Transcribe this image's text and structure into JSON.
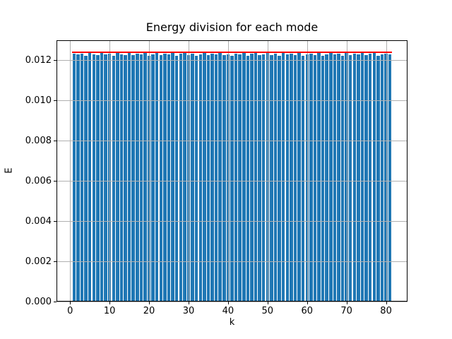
{
  "chart_data": {
    "type": "bar",
    "title": "Energy division for each mode",
    "xlabel": "k",
    "ylabel": "E",
    "grid": true,
    "legend_position": "none",
    "bar_color": "#1f77b4",
    "marker_color": "#ff0000",
    "grid_color": "#b0b0b0",
    "xlim": [
      -3.44,
      85.44
    ],
    "ylim": [
      0,
      0.013
    ],
    "x_ticks": [
      {
        "value": 0,
        "label": "0"
      },
      {
        "value": 10,
        "label": "10"
      },
      {
        "value": 20,
        "label": "20"
      },
      {
        "value": 30,
        "label": "30"
      },
      {
        "value": 40,
        "label": "40"
      },
      {
        "value": 50,
        "label": "50"
      },
      {
        "value": 60,
        "label": "60"
      },
      {
        "value": 70,
        "label": "70"
      },
      {
        "value": 80,
        "label": "80"
      }
    ],
    "y_ticks": [
      {
        "value": 0.0,
        "label": "0.000"
      },
      {
        "value": 0.002,
        "label": "0.002"
      },
      {
        "value": 0.004,
        "label": "0.004"
      },
      {
        "value": 0.006,
        "label": "0.006"
      },
      {
        "value": 0.008,
        "label": "0.008"
      },
      {
        "value": 0.01,
        "label": "0.010"
      },
      {
        "value": 0.012,
        "label": "0.012"
      }
    ],
    "k_first": 1,
    "k_last": 81,
    "bar_width": 0.8,
    "reference_value": 0.0124,
    "bar_values": [
      0.01235,
      0.01228,
      0.01232,
      0.01224,
      0.01236,
      0.0123,
      0.01226,
      0.01238,
      0.01229,
      0.01233,
      0.01222,
      0.01236,
      0.01231,
      0.01227,
      0.01237,
      0.01225,
      0.01234,
      0.01229,
      0.01238,
      0.01223,
      0.01231,
      0.01236,
      0.01226,
      0.01233,
      0.01228,
      0.01237,
      0.01224,
      0.01232,
      0.01238,
      0.01227,
      0.01234,
      0.01222,
      0.0123,
      0.01236,
      0.01225,
      0.01233,
      0.01229,
      0.01238,
      0.01226,
      0.01231,
      0.01223,
      0.01235,
      0.01228,
      0.01237,
      0.01224,
      0.01232,
      0.01236,
      0.01227,
      0.0123,
      0.01238,
      0.01225,
      0.01233,
      0.01221,
      0.01236,
      0.01229,
      0.01234,
      0.01226,
      0.01237,
      0.01223,
      0.01231,
      0.01235,
      0.01227,
      0.01238,
      0.01224,
      0.0123,
      0.01236,
      0.01228,
      0.01233,
      0.01222,
      0.01237,
      0.01226,
      0.01234,
      0.01229,
      0.01238,
      0.01225,
      0.01232,
      0.01236,
      0.01223,
      0.0123,
      0.01235,
      0.01228
    ]
  }
}
